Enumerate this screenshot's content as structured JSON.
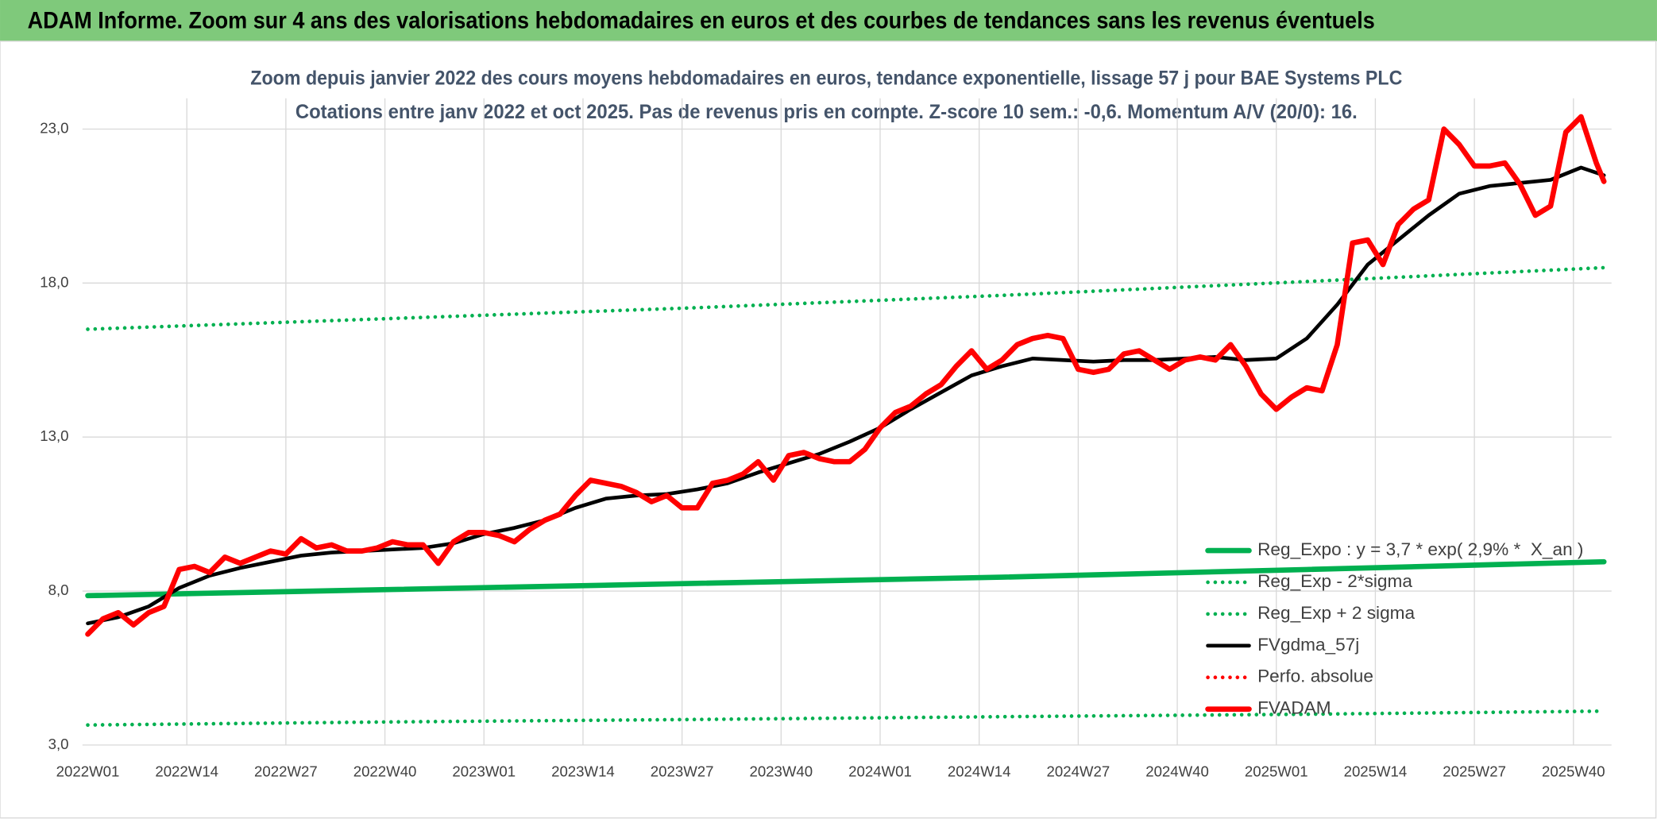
{
  "banner": "ADAM Informe. Zoom sur 4 ans des valorisations hebdomadaires en euros et des courbes de tendances sans les revenus éventuels",
  "chart_data": {
    "type": "line",
    "title": "Zoom depuis janvier 2022 des cours moyens hebdomadaires en euros, tendance exponentielle, lissage 57 j pour BAE Systems PLC",
    "subtitle": "Cotations entre janv 2022 et oct 2025. Pas de revenus pris en compte. Z-score 10 sem.: -0,6. Momentum A/V (20/0): 16.",
    "xlim": [
      -0.7,
      200
    ],
    "ylim": [
      3,
      24
    ],
    "xticks": [
      {
        "value": 0,
        "label": "2022W01"
      },
      {
        "value": 13,
        "label": "2022W14"
      },
      {
        "value": 26,
        "label": "2022W27"
      },
      {
        "value": 39,
        "label": "2022W40"
      },
      {
        "value": 52,
        "label": "2023W01"
      },
      {
        "value": 65,
        "label": "2023W14"
      },
      {
        "value": 78,
        "label": "2023W27"
      },
      {
        "value": 91,
        "label": "2023W40"
      },
      {
        "value": 104,
        "label": "2024W01"
      },
      {
        "value": 117,
        "label": "2024W14"
      },
      {
        "value": 130,
        "label": "2024W27"
      },
      {
        "value": 143,
        "label": "2024W40"
      },
      {
        "value": 156,
        "label": "2025W01"
      },
      {
        "value": 169,
        "label": "2025W14"
      },
      {
        "value": 182,
        "label": "2025W27"
      },
      {
        "value": 195,
        "label": "2025W40"
      }
    ],
    "yticks": [
      {
        "value": 3,
        "label": "3,0"
      },
      {
        "value": 8,
        "label": "8,0"
      },
      {
        "value": 13,
        "label": "13,0"
      },
      {
        "value": 18,
        "label": "18,0"
      },
      {
        "value": 23,
        "label": "23,0"
      }
    ],
    "grid": true,
    "legend": "lower right",
    "series": [
      {
        "name": "Reg_Expo : y = 3,7 * exp( 2,9% *  X_an )",
        "color": "#00b050",
        "style": "solid",
        "width": 5,
        "x": [
          0,
          40,
          80,
          120,
          160,
          199
        ],
        "values": [
          7.85,
          8.05,
          8.25,
          8.45,
          8.7,
          8.95
        ]
      },
      {
        "name": "Reg_Exp - 2*sigma",
        "color": "#00b050",
        "style": "dotted",
        "width": 3.5,
        "x": [
          0,
          40,
          80,
          120,
          160,
          199
        ],
        "values": [
          3.65,
          3.75,
          3.83,
          3.92,
          4.0,
          4.1
        ]
      },
      {
        "name": "Reg_Exp + 2 sigma",
        "color": "#00b050",
        "style": "dotted",
        "width": 3.5,
        "x": [
          0,
          40,
          80,
          120,
          160,
          199
        ],
        "values": [
          16.5,
          16.85,
          17.2,
          17.6,
          18.05,
          18.5
        ]
      },
      {
        "name": "FVgdma_57j",
        "color": "#000000",
        "style": "solid",
        "width": 3.5,
        "x": [
          0,
          4,
          8,
          12,
          16,
          20,
          24,
          28,
          32,
          36,
          40,
          44,
          48,
          52,
          56,
          60,
          64,
          68,
          72,
          76,
          80,
          84,
          88,
          92,
          96,
          100,
          104,
          108,
          112,
          116,
          120,
          124,
          128,
          132,
          136,
          140,
          144,
          148,
          152,
          156,
          160,
          164,
          168,
          172,
          176,
          180,
          184,
          188,
          192,
          196,
          199
        ],
        "values": [
          6.95,
          7.15,
          7.5,
          8.1,
          8.5,
          8.75,
          8.95,
          9.15,
          9.25,
          9.3,
          9.35,
          9.4,
          9.55,
          9.85,
          10.05,
          10.3,
          10.7,
          11.0,
          11.1,
          11.15,
          11.3,
          11.5,
          11.85,
          12.15,
          12.45,
          12.85,
          13.3,
          13.9,
          14.45,
          15.0,
          15.3,
          15.55,
          15.5,
          15.45,
          15.5,
          15.5,
          15.55,
          15.6,
          15.5,
          15.55,
          16.2,
          17.3,
          18.6,
          19.4,
          20.2,
          20.9,
          21.15,
          21.25,
          21.35,
          21.75,
          21.5
        ]
      },
      {
        "name": "Perfo. absolue",
        "color": "#ff0000",
        "style": "dotted",
        "width": 3.5,
        "x": [],
        "values": []
      },
      {
        "name": "FVADAM",
        "color": "#ff0000",
        "style": "solid",
        "width": 5,
        "x": [
          0,
          2,
          4,
          6,
          8,
          10,
          12,
          14,
          16,
          18,
          20,
          22,
          24,
          26,
          28,
          30,
          32,
          34,
          36,
          38,
          40,
          42,
          44,
          46,
          48,
          50,
          52,
          54,
          56,
          58,
          60,
          62,
          64,
          66,
          68,
          70,
          72,
          74,
          76,
          78,
          80,
          82,
          84,
          86,
          88,
          90,
          92,
          94,
          96,
          98,
          100,
          102,
          104,
          106,
          108,
          110,
          112,
          114,
          116,
          118,
          120,
          122,
          124,
          126,
          128,
          130,
          132,
          134,
          136,
          138,
          140,
          142,
          144,
          146,
          148,
          150,
          152,
          154,
          156,
          158,
          160,
          162,
          164,
          166,
          168,
          170,
          172,
          174,
          176,
          178,
          180,
          182,
          184,
          186,
          188,
          190,
          192,
          194,
          196,
          198,
          199
        ],
        "values": [
          6.6,
          7.1,
          7.3,
          6.9,
          7.3,
          7.5,
          8.7,
          8.8,
          8.6,
          9.1,
          8.9,
          9.1,
          9.3,
          9.2,
          9.7,
          9.4,
          9.5,
          9.3,
          9.3,
          9.4,
          9.6,
          9.5,
          9.5,
          8.9,
          9.6,
          9.9,
          9.9,
          9.8,
          9.6,
          10.0,
          10.3,
          10.5,
          11.1,
          11.6,
          11.5,
          11.4,
          11.2,
          10.9,
          11.1,
          10.7,
          10.7,
          11.5,
          11.6,
          11.8,
          12.2,
          11.6,
          12.4,
          12.5,
          12.3,
          12.2,
          12.2,
          12.6,
          13.3,
          13.8,
          14.0,
          14.4,
          14.7,
          15.3,
          15.8,
          15.2,
          15.5,
          16.0,
          16.2,
          16.3,
          16.2,
          15.2,
          15.1,
          15.2,
          15.7,
          15.8,
          15.5,
          15.2,
          15.5,
          15.6,
          15.5,
          16.0,
          15.3,
          14.4,
          13.9,
          14.3,
          14.6,
          14.5,
          16.0,
          19.3,
          19.4,
          18.6,
          19.9,
          20.4,
          20.7,
          23.0,
          22.5,
          21.8,
          21.8,
          21.9,
          21.2,
          20.2,
          20.5,
          22.9,
          23.4,
          21.9,
          21.3
        ]
      }
    ]
  }
}
